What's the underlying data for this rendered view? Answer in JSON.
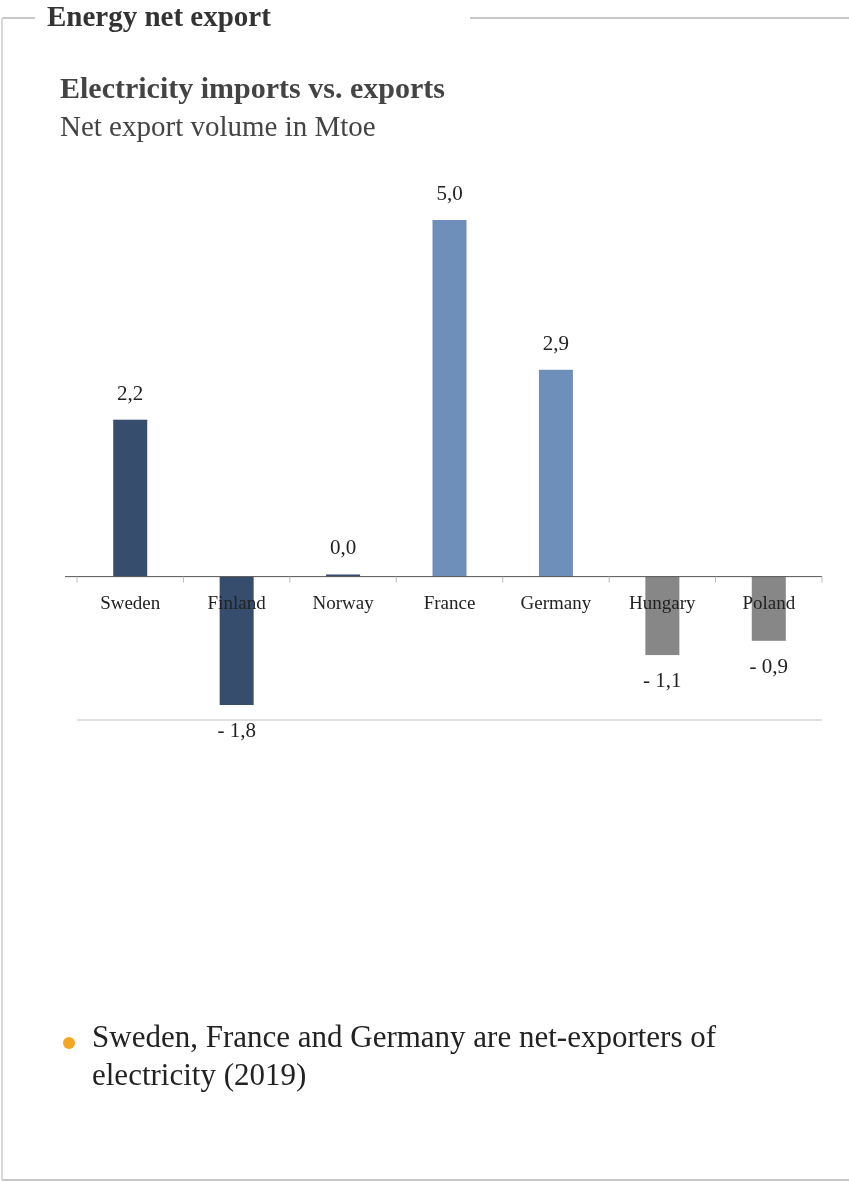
{
  "chart_data": {
    "type": "bar",
    "title": "Electricity imports vs. exports",
    "subtitle": "Net export volume in Mtoe",
    "annotations": [
      "Energy net export",
      "Sweden, France and Germany are net-exporters of electricity (2019)"
    ],
    "categories": [
      "Sweden",
      "Finland",
      "Norway",
      "France",
      "Germany",
      "Hungary",
      "Poland"
    ],
    "values": [
      2.2,
      -1.8,
      0.03,
      5.0,
      2.9,
      -1.1,
      -0.9
    ],
    "colors": [
      "#364d6e",
      "#364d6e",
      "#364d6e",
      "#6f8fbb",
      "#6f8fbb",
      "#878787",
      "#878787"
    ],
    "value_labels": [
      "2,2",
      "- 1,8",
      "0,0",
      "5,0",
      "2,9",
      "- 1,1",
      "- 0,9"
    ]
  }
}
